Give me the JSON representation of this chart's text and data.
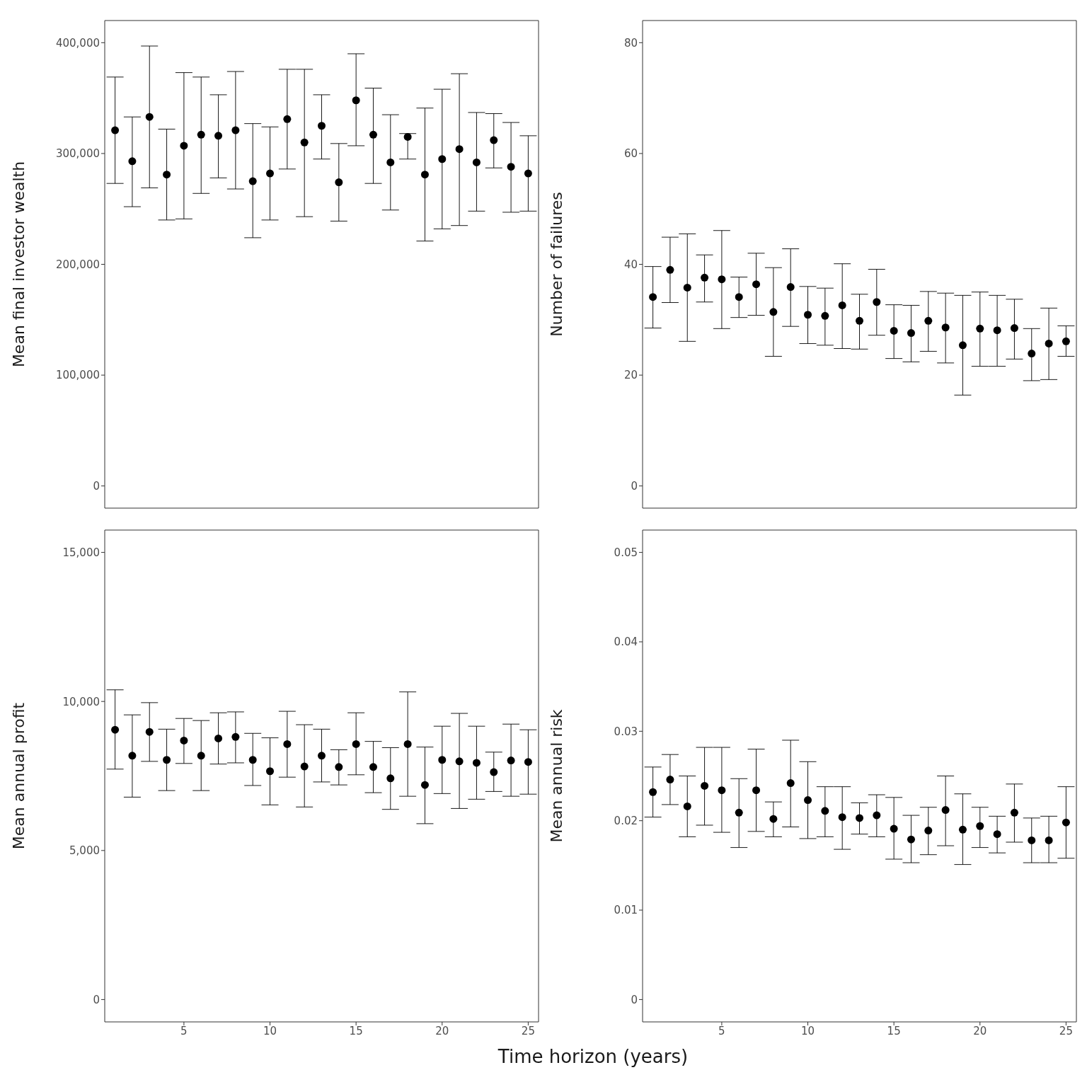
{
  "chart_data": [
    {
      "type": "scatter",
      "ylabel": "Mean final investor wealth",
      "x": [
        1,
        2,
        3,
        4,
        5,
        6,
        7,
        8,
        9,
        10,
        11,
        12,
        13,
        14,
        15,
        16,
        17,
        18,
        19,
        20,
        21,
        22,
        23,
        24,
        25
      ],
      "xlim": [
        0.4,
        25.6
      ],
      "xticks": [
        5,
        10,
        15,
        20,
        25
      ],
      "ylim": [
        -20000,
        420000
      ],
      "yticks": [
        {
          "value": 0,
          "label": "0"
        },
        {
          "value": 100000,
          "label": "100,000"
        },
        {
          "value": 200000,
          "label": "200,000"
        },
        {
          "value": 300000,
          "label": "300,000"
        },
        {
          "value": 400000,
          "label": "400,000"
        }
      ],
      "tick_labels": "y",
      "marker": "circle",
      "color": "#000000",
      "values": [
        321000,
        293000,
        333000,
        281000,
        307000,
        317000,
        316000,
        321000,
        275000,
        282000,
        331000,
        310000,
        325000,
        274000,
        348000,
        317000,
        292000,
        315000,
        281000,
        295000,
        304000,
        292000,
        312000,
        288000,
        282000
      ],
      "errors": [
        [
          273000,
          369000
        ],
        [
          252000,
          333000
        ],
        [
          269000,
          397000
        ],
        [
          240000,
          322000
        ],
        [
          241000,
          373000
        ],
        [
          264000,
          369000
        ],
        [
          278000,
          353000
        ],
        [
          268000,
          374000
        ],
        [
          224000,
          327000
        ],
        [
          240000,
          324000
        ],
        [
          286000,
          376000
        ],
        [
          243000,
          376000
        ],
        [
          295000,
          353000
        ],
        [
          239000,
          309000
        ],
        [
          307000,
          390000
        ],
        [
          273000,
          359000
        ],
        [
          249000,
          335000
        ],
        [
          295000,
          318000
        ],
        [
          221000,
          341000
        ],
        [
          232000,
          358000
        ],
        [
          235000,
          372000
        ],
        [
          248000,
          337000
        ],
        [
          287000,
          336000
        ],
        [
          247000,
          328000
        ],
        [
          248000,
          316000
        ]
      ]
    },
    {
      "type": "scatter",
      "ylabel": "Number of failures",
      "x": [
        1,
        2,
        3,
        4,
        5,
        6,
        7,
        8,
        9,
        10,
        11,
        12,
        13,
        14,
        15,
        16,
        17,
        18,
        19,
        20,
        21,
        22,
        23,
        24,
        25
      ],
      "xlim": [
        0.4,
        25.6
      ],
      "xticks": [
        5,
        10,
        15,
        20,
        25
      ],
      "ylim": [
        -4,
        84
      ],
      "yticks": [
        0,
        20,
        40,
        60,
        80
      ],
      "tick_labels": "y",
      "marker": "circle",
      "color": "#000000",
      "values": [
        34.1,
        39.0,
        35.8,
        37.6,
        37.3,
        34.1,
        36.4,
        31.4,
        35.9,
        30.9,
        30.7,
        32.6,
        29.8,
        33.2,
        28.0,
        27.6,
        29.8,
        28.6,
        25.4,
        28.4,
        28.1,
        28.5,
        23.9,
        25.7,
        26.1
      ],
      "errors": [
        [
          28.5,
          39.6
        ],
        [
          33.1,
          44.9
        ],
        [
          26.1,
          45.5
        ],
        [
          33.2,
          41.7
        ],
        [
          28.4,
          46.1
        ],
        [
          30.4,
          37.7
        ],
        [
          30.8,
          42.0
        ],
        [
          23.4,
          39.4
        ],
        [
          28.8,
          42.8
        ],
        [
          25.7,
          36.0
        ],
        [
          25.4,
          35.7
        ],
        [
          24.8,
          40.1
        ],
        [
          24.7,
          34.6
        ],
        [
          27.2,
          39.1
        ],
        [
          23.0,
          32.7
        ],
        [
          22.4,
          32.6
        ],
        [
          24.3,
          35.1
        ],
        [
          22.2,
          34.8
        ],
        [
          16.4,
          34.4
        ],
        [
          21.6,
          35.0
        ],
        [
          21.6,
          34.4
        ],
        [
          22.9,
          33.7
        ],
        [
          19.0,
          28.4
        ],
        [
          19.2,
          32.1
        ],
        [
          23.4,
          28.9
        ]
      ]
    },
    {
      "type": "scatter",
      "ylabel": "Mean annual profit",
      "xlabel": "Time horizon (years)",
      "x": [
        1,
        2,
        3,
        4,
        5,
        6,
        7,
        8,
        9,
        10,
        11,
        12,
        13,
        14,
        15,
        16,
        17,
        18,
        19,
        20,
        21,
        22,
        23,
        24,
        25
      ],
      "xlim": [
        0.4,
        25.6
      ],
      "xticks": [
        5,
        10,
        15,
        20,
        25
      ],
      "ylim": [
        -750,
        15750
      ],
      "yticks": [
        {
          "value": 0,
          "label": "0"
        },
        {
          "value": 5000,
          "label": "5,000"
        },
        {
          "value": 10000,
          "label": "10,000"
        },
        {
          "value": 15000,
          "label": "15,000"
        }
      ],
      "marker": "circle",
      "color": "#000000",
      "values": [
        9050,
        8180,
        8980,
        8040,
        8690,
        8180,
        8760,
        8810,
        8040,
        7660,
        8570,
        7820,
        8180,
        7800,
        8570,
        7800,
        7420,
        8570,
        7200,
        8040,
        7990,
        7940,
        7630,
        8020,
        7970
      ],
      "errors": [
        [
          7730,
          10390
        ],
        [
          6790,
          9550
        ],
        [
          7990,
          9960
        ],
        [
          7010,
          9070
        ],
        [
          7920,
          9430
        ],
        [
          7010,
          9360
        ],
        [
          7900,
          9620
        ],
        [
          7940,
          9650
        ],
        [
          7180,
          8930
        ],
        [
          6530,
          8780
        ],
        [
          7460,
          9670
        ],
        [
          6460,
          9220
        ],
        [
          7300,
          9070
        ],
        [
          7200,
          8380
        ],
        [
          7540,
          9620
        ],
        [
          6940,
          8660
        ],
        [
          6380,
          8450
        ],
        [
          6820,
          10320
        ],
        [
          5900,
          8470
        ],
        [
          6910,
          9170
        ],
        [
          6410,
          9600
        ],
        [
          6720,
          9170
        ],
        [
          6980,
          8300
        ],
        [
          6820,
          9240
        ],
        [
          6890,
          9050
        ]
      ]
    },
    {
      "type": "scatter",
      "ylabel": "Mean annual risk",
      "x": [
        1,
        2,
        3,
        4,
        5,
        6,
        7,
        8,
        9,
        10,
        11,
        12,
        13,
        14,
        15,
        16,
        17,
        18,
        19,
        20,
        21,
        22,
        23,
        24,
        25
      ],
      "xlim": [
        0.4,
        25.6
      ],
      "xticks": [
        5,
        10,
        15,
        20,
        25
      ],
      "ylim": [
        -0.0025,
        0.0525
      ],
      "yticks": [
        {
          "value": 0,
          "label": "0"
        },
        {
          "value": 0.01,
          "label": "0.01"
        },
        {
          "value": 0.02,
          "label": "0.02"
        },
        {
          "value": 0.03,
          "label": "0.03"
        },
        {
          "value": 0.04,
          "label": "0.04"
        },
        {
          "value": 0.05,
          "label": "0.05"
        }
      ],
      "marker": "circle",
      "color": "#000000",
      "values": [
        0.0232,
        0.0246,
        0.0216,
        0.0239,
        0.0234,
        0.0209,
        0.0234,
        0.0202,
        0.0242,
        0.0223,
        0.0211,
        0.0204,
        0.0203,
        0.0206,
        0.0191,
        0.0179,
        0.0189,
        0.0212,
        0.019,
        0.0194,
        0.0185,
        0.0209,
        0.0178,
        0.0178,
        0.0198
      ],
      "errors": [
        [
          0.0204,
          0.026
        ],
        [
          0.0218,
          0.0274
        ],
        [
          0.0182,
          0.025
        ],
        [
          0.0195,
          0.0282
        ],
        [
          0.0187,
          0.0282
        ],
        [
          0.017,
          0.0247
        ],
        [
          0.0188,
          0.028
        ],
        [
          0.0182,
          0.0221
        ],
        [
          0.0193,
          0.029
        ],
        [
          0.018,
          0.0266
        ],
        [
          0.0182,
          0.0238
        ],
        [
          0.0168,
          0.0238
        ],
        [
          0.0185,
          0.022
        ],
        [
          0.0182,
          0.0229
        ],
        [
          0.0157,
          0.0226
        ],
        [
          0.0153,
          0.0206
        ],
        [
          0.0162,
          0.0215
        ],
        [
          0.0172,
          0.025
        ],
        [
          0.0151,
          0.023
        ],
        [
          0.017,
          0.0215
        ],
        [
          0.0164,
          0.0205
        ],
        [
          0.0176,
          0.0241
        ],
        [
          0.0153,
          0.0203
        ],
        [
          0.0153,
          0.0205
        ],
        [
          0.0158,
          0.0238
        ]
      ]
    }
  ]
}
